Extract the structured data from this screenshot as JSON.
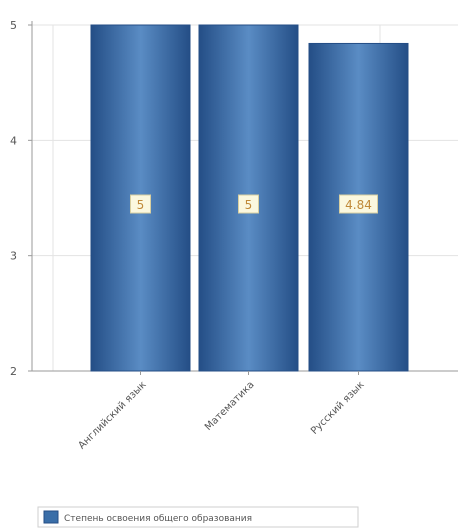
{
  "chart_data": {
    "type": "bar",
    "categories": [
      "Английский язык",
      "Математика",
      "Русский язык"
    ],
    "series": [
      {
        "name": "Степень освоения общего образования",
        "values": [
          5,
          5,
          4.84
        ],
        "labels": [
          "5",
          "5",
          "4.84"
        ]
      }
    ],
    "ylim": [
      2,
      5
    ],
    "yticks": [
      2,
      3,
      4,
      5
    ],
    "grid": true,
    "legend_position": "bottom-left"
  },
  "colors": {
    "bar": "#3a6ea8",
    "bar_dark": "#244e86",
    "bar_light": "#5a8cc4",
    "label_bg": "#fbf8df",
    "label_text": "#c08a3a",
    "grid": "#e3e3e3",
    "axis": "#9a9a9a",
    "text": "#555555"
  }
}
